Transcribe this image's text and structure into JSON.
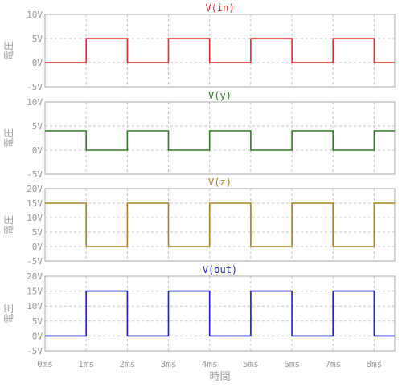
{
  "chart_data": [
    {
      "type": "line",
      "title": "V(in)",
      "ylabel": "電圧",
      "color": "#e8262a",
      "ylim": [
        -5,
        10
      ],
      "yticks": [
        -5,
        0,
        5,
        10
      ],
      "ytick_labels": [
        "-5V",
        "0V",
        "5V",
        "10V"
      ],
      "grid": true,
      "x": [
        0,
        1,
        1,
        2,
        2,
        3,
        3,
        4,
        4,
        5,
        5,
        6,
        6,
        7,
        7,
        8,
        8,
        8.5
      ],
      "y": [
        0,
        0,
        5,
        5,
        0,
        0,
        5,
        5,
        0,
        0,
        5,
        5,
        0,
        0,
        5,
        5,
        0,
        0
      ]
    },
    {
      "type": "line",
      "title": "V(y)",
      "ylabel": "電圧",
      "color": "#2e7d1e",
      "ylim": [
        -5,
        10
      ],
      "yticks": [
        -5,
        0,
        5,
        10
      ],
      "ytick_labels": [
        "-5V",
        "0V",
        "5V",
        "10V"
      ],
      "grid": true,
      "x": [
        0,
        1,
        1,
        2,
        2,
        3,
        3,
        4,
        4,
        5,
        5,
        6,
        6,
        7,
        7,
        8,
        8,
        8.5
      ],
      "y": [
        4,
        4,
        0,
        0,
        4,
        4,
        0,
        0,
        4,
        4,
        0,
        0,
        4,
        4,
        0,
        0,
        4,
        4
      ]
    },
    {
      "type": "line",
      "title": "V(z)",
      "ylabel": "電圧",
      "color": "#a68216",
      "ylim": [
        -5,
        20
      ],
      "yticks": [
        -5,
        0,
        5,
        10,
        15,
        20
      ],
      "ytick_labels": [
        "-5V",
        "0V",
        "5V",
        "10V",
        "15V",
        "20V"
      ],
      "grid": true,
      "x": [
        0,
        1,
        1,
        2,
        2,
        3,
        3,
        4,
        4,
        5,
        5,
        6,
        6,
        7,
        7,
        8,
        8,
        8.5
      ],
      "y": [
        15,
        15,
        0,
        0,
        15,
        15,
        0,
        0,
        15,
        15,
        0,
        0,
        15,
        15,
        0,
        0,
        15,
        15
      ]
    },
    {
      "type": "line",
      "title": "V(out)",
      "ylabel": "電圧",
      "xlabel": "時間",
      "color": "#1a1ad4",
      "ylim": [
        -5,
        20
      ],
      "yticks": [
        -5,
        0,
        5,
        10,
        15,
        20
      ],
      "ytick_labels": [
        "-5V",
        "0V",
        "5V",
        "10V",
        "15V",
        "20V"
      ],
      "xlim": [
        0,
        8.5
      ],
      "xticks": [
        0,
        1,
        2,
        3,
        4,
        5,
        6,
        7,
        8
      ],
      "xtick_labels": [
        "0ms",
        "1ms",
        "2ms",
        "3ms",
        "4ms",
        "5ms",
        "6ms",
        "7ms",
        "8ms"
      ],
      "grid": true,
      "x": [
        0,
        1,
        1,
        2,
        2,
        3,
        3,
        4,
        4,
        5,
        5,
        6,
        6,
        7,
        7,
        8,
        8,
        8.5
      ],
      "y": [
        0,
        0,
        15,
        15,
        0,
        0,
        15,
        15,
        0,
        0,
        15,
        15,
        0,
        0,
        15,
        15,
        0,
        0
      ]
    }
  ]
}
